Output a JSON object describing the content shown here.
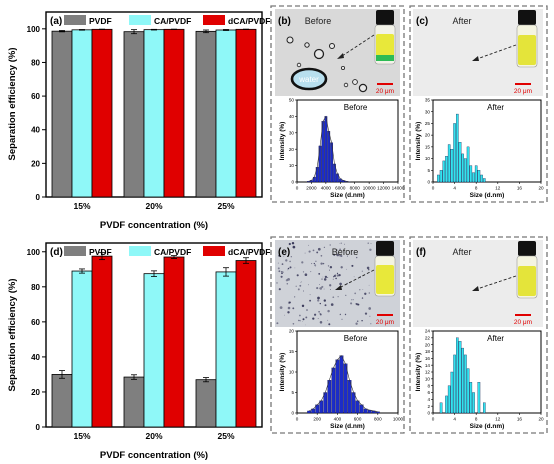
{
  "colors": {
    "pvdf": "#7f7f7f",
    "ca_pvdf": "#8ff8f8",
    "dca_pvdf": "#e00000",
    "hist_before": "#1c2cc8",
    "hist_after": "#33e3ee",
    "scale": "#e00000",
    "vial_liquid": "#e8e83a"
  },
  "chart_data": [
    {
      "type": "bar",
      "panel": "(a)",
      "categories": [
        "15%",
        "20%",
        "25%"
      ],
      "series": [
        {
          "name": "PVDF",
          "values": [
            98.6,
            98.3,
            98.5
          ],
          "errors": [
            0.4,
            1.2,
            0.8
          ]
        },
        {
          "name": "CA/PVDF",
          "values": [
            99.4,
            99.5,
            99.3
          ],
          "errors": [
            0.2,
            0.2,
            0.3
          ]
        },
        {
          "name": "dCA/PVDF",
          "values": [
            99.7,
            99.7,
            99.7
          ],
          "errors": [
            0.1,
            0.1,
            0.1
          ]
        }
      ],
      "xlabel": "PVDF concentration (%)",
      "ylabel": "Separation efficiency (%)",
      "ylim": [
        0,
        110
      ],
      "yticks": [
        0,
        20,
        40,
        60,
        80,
        100
      ],
      "legend": "top"
    },
    {
      "type": "bar",
      "panel": "(d)",
      "categories": [
        "15%",
        "20%",
        "25%"
      ],
      "series": [
        {
          "name": "PVDF",
          "values": [
            30,
            28.5,
            27
          ],
          "errors": [
            2.2,
            1.3,
            1.2
          ]
        },
        {
          "name": "CA/PVDF",
          "values": [
            89,
            87.5,
            88.5
          ],
          "errors": [
            1.2,
            1.6,
            2.4
          ]
        },
        {
          "name": "dCA/PVDF",
          "values": [
            97.5,
            97,
            95
          ],
          "errors": [
            2.0,
            0.8,
            1.6
          ]
        }
      ],
      "xlabel": "PVDF concentration (%)",
      "ylabel": "Separation efficiency (%)",
      "ylim": [
        0,
        105
      ],
      "yticks": [
        0,
        20,
        40,
        60,
        80,
        100
      ],
      "legend": "top"
    },
    {
      "type": "bar",
      "panel": "(b)",
      "title": "Before",
      "xlabel": "Size (d.nm)",
      "ylabel": "Intensity (%)",
      "x": [
        1600,
        2000,
        2400,
        2800,
        3200,
        3600,
        4000,
        4400,
        4800,
        5200,
        5600,
        6000,
        6400,
        6800,
        7200
      ],
      "values": [
        0.4,
        1,
        3,
        9,
        22,
        37,
        40,
        31,
        24,
        11,
        5,
        2,
        1,
        0.5,
        0.2
      ],
      "xlim": [
        0,
        14000
      ],
      "xticks": [
        0,
        2000,
        4000,
        6000,
        8000,
        10000,
        12000,
        14000
      ],
      "ylim": [
        0,
        50
      ],
      "yticks": [
        0,
        10,
        20,
        30,
        40,
        50
      ]
    },
    {
      "type": "bar",
      "panel": "(c)",
      "title": "After",
      "xlabel": "Size (d.nm)",
      "ylabel": "Intensity (%)",
      "x": [
        1,
        1.5,
        2,
        2.5,
        3,
        3.5,
        4,
        4.5,
        5,
        5.5,
        6,
        6.5,
        7,
        7.5,
        8,
        8.5,
        9,
        9.5
      ],
      "values": [
        3,
        5,
        9,
        11,
        16,
        14,
        25,
        29,
        17,
        12,
        10,
        15,
        7,
        4,
        7,
        5,
        3,
        1.5
      ],
      "xlim": [
        0,
        20
      ],
      "xticks": [
        0,
        4,
        8,
        12,
        16,
        20
      ],
      "ylim": [
        0,
        35
      ],
      "yticks": [
        0,
        5,
        10,
        15,
        20,
        25,
        30,
        35
      ]
    },
    {
      "type": "bar",
      "panel": "(e)",
      "title": "Before",
      "xlabel": "Size (d.nm)",
      "ylabel": "Intensity (%)",
      "x": [
        120,
        160,
        200,
        240,
        280,
        320,
        360,
        400,
        440,
        480,
        520,
        560,
        600,
        640,
        680,
        720,
        760,
        800
      ],
      "values": [
        0.5,
        1,
        2,
        3,
        5,
        8,
        11,
        13,
        14,
        12,
        8,
        5,
        3,
        2,
        1,
        0.7,
        0.5,
        0.3
      ],
      "xlim": [
        0,
        1000
      ],
      "xticks": [
        0,
        200,
        400,
        600,
        800,
        1000
      ],
      "ylim": [
        0,
        20
      ],
      "yticks": [
        0,
        5,
        10,
        15,
        20
      ]
    },
    {
      "type": "bar",
      "panel": "(f)",
      "title": "After",
      "xlabel": "Size (d.nm)",
      "ylabel": "Intensity (%)",
      "x": [
        1.5,
        2.5,
        3,
        3.5,
        4,
        4.5,
        5,
        5.5,
        6,
        6.5,
        7,
        7.5,
        8.5,
        9.5
      ],
      "values": [
        3,
        5,
        8,
        12,
        17,
        22,
        21,
        19,
        17,
        13,
        9,
        6,
        9,
        3
      ],
      "xlim": [
        0,
        20
      ],
      "xticks": [
        0,
        4,
        8,
        12,
        16,
        20
      ],
      "ylim": [
        0,
        24
      ],
      "yticks": [
        0,
        2,
        4,
        6,
        8,
        10,
        12,
        14,
        16,
        18,
        20,
        22,
        24
      ]
    }
  ],
  "micrographs": [
    {
      "panel": "(b)",
      "label": "Before",
      "scale": "20 μm",
      "drop_label": "water"
    },
    {
      "panel": "(c)",
      "label": "After",
      "scale": "20 μm"
    },
    {
      "panel": "(e)",
      "label": "Before",
      "scale": "20 μm"
    },
    {
      "panel": "(f)",
      "label": "After",
      "scale": "20 μm"
    }
  ]
}
